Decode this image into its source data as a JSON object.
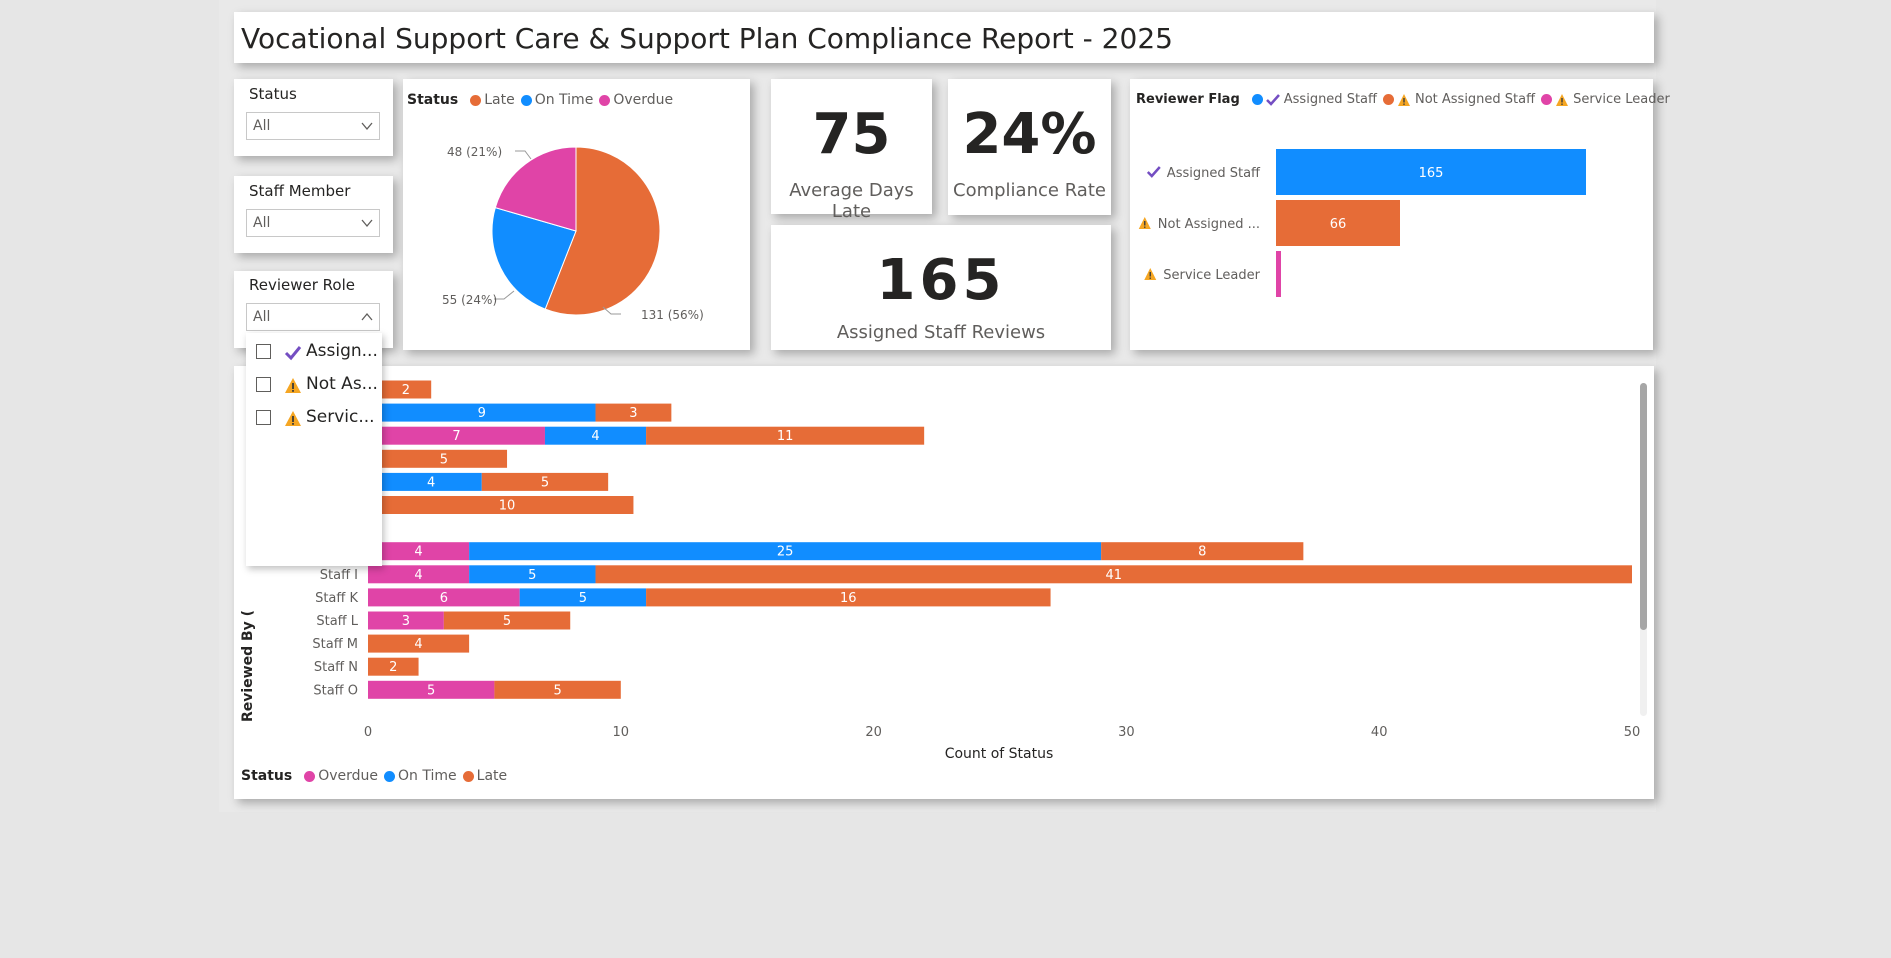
{
  "report_title": "Vocational Support Care & Support Plan Compliance Report - 2025",
  "colors": {
    "late": "#e66c37",
    "on_time": "#118dff",
    "overdue": "#e044a7",
    "check": "#744ec2",
    "warning": "#f5a623"
  },
  "slicers": {
    "status": {
      "title": "Status",
      "value": "All"
    },
    "staff_member": {
      "title": "Staff Member",
      "value": "All"
    },
    "reviewer_role": {
      "title": "Reviewer Role",
      "value": "All",
      "options": [
        {
          "label": "Assign...",
          "icon": "check-icon"
        },
        {
          "label": "Not As...",
          "icon": "warning-icon"
        },
        {
          "label": "Servic...",
          "icon": "warning-icon"
        }
      ]
    }
  },
  "pie": {
    "legend_title": "Status",
    "legend": [
      "Late",
      "On Time",
      "Overdue"
    ],
    "labels": {
      "late": "131 (56%)",
      "on_time": "55 (24%)",
      "overdue": "48 (21%)"
    }
  },
  "kpis": {
    "avg_days_late": {
      "value": "75",
      "label": "Average Days Late"
    },
    "compliance_rate": {
      "value": "24%",
      "label": "Compliance Rate"
    },
    "assigned_reviews": {
      "value": "165",
      "label": "Assigned Staff Reviews"
    }
  },
  "reviewer_flag": {
    "legend_title": "Reviewer Flag",
    "legend": [
      "Assigned Staff",
      "Not Assigned Staff",
      "Service Leader"
    ],
    "rows": [
      {
        "label": "Assigned Staff",
        "icon": "check-icon",
        "data_label": "165"
      },
      {
        "label": "Not Assigned ...",
        "icon": "warning-icon",
        "data_label": "66"
      },
      {
        "label": "Service Leader",
        "icon": "warning-icon",
        "data_label": ""
      }
    ]
  },
  "status_chart": {
    "y_axis_title": "Reviewed By (",
    "x_axis_title": "Count of Status",
    "legend_title": "Status",
    "legend": [
      "Overdue",
      "On Time",
      "Late"
    ]
  },
  "chart_data": [
    {
      "type": "pie",
      "categories": [
        "Late",
        "On Time",
        "Overdue"
      ],
      "values": [
        131,
        55,
        48
      ],
      "percent": [
        56,
        24,
        21
      ]
    },
    {
      "type": "bar",
      "orientation": "horizontal",
      "categories": [
        "Assigned Staff",
        "Not Assigned ...",
        "Service Leader"
      ],
      "values": [
        165,
        66,
        1
      ],
      "data_labels": [
        "165",
        "66",
        ""
      ]
    },
    {
      "type": "bar",
      "orientation": "horizontal",
      "stacked": true,
      "categories": [
        "",
        "",
        "",
        "",
        "",
        "",
        "",
        "",
        "Staff I",
        "Staff K",
        "Staff L",
        "Staff M",
        "Staff N",
        "Staff O"
      ],
      "series": [
        {
          "name": "Overdue",
          "values": [
            0.5,
            0,
            7,
            0.5,
            0.5,
            0.5,
            0.5,
            4,
            4,
            6,
            3,
            0,
            0,
            5
          ]
        },
        {
          "name": "On Time",
          "values": [
            0,
            9,
            4,
            0,
            4,
            0,
            0,
            25,
            5,
            5,
            0,
            0,
            0,
            0
          ]
        },
        {
          "name": "Late",
          "values": [
            2,
            3,
            11,
            5,
            5,
            10,
            0,
            8,
            41,
            16,
            5,
            4,
            2,
            5
          ]
        }
      ],
      "xlabel": "Count of Status",
      "ylabel": "Reviewed By (",
      "xlim": [
        0,
        50
      ],
      "xticks": [
        0,
        10,
        20,
        30,
        40,
        50
      ],
      "grid": false,
      "legend_position": "bottom-left"
    }
  ]
}
